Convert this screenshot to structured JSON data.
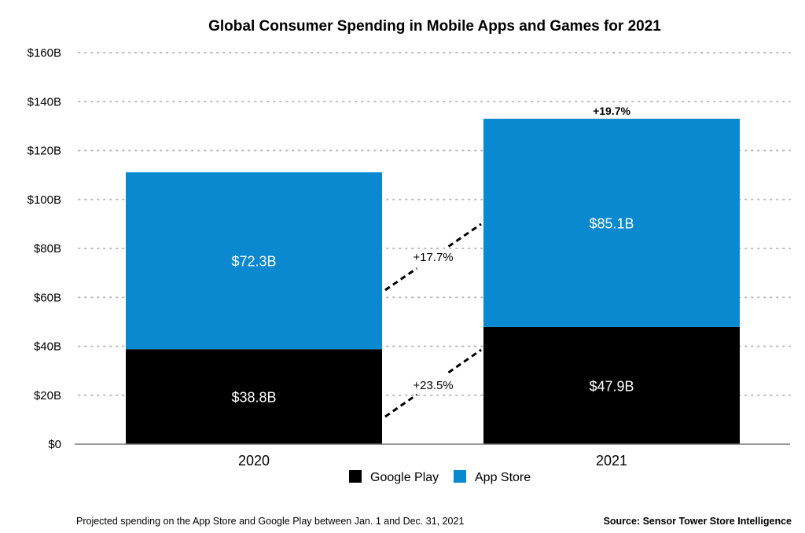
{
  "chart_data": {
    "type": "bar",
    "stacked": true,
    "title": "Global Consumer Spending in Mobile Apps and Games for 2021",
    "xlabel": "",
    "ylabel": "",
    "categories": [
      "2020",
      "2021"
    ],
    "series": [
      {
        "name": "Google Play",
        "values": [
          38.8,
          47.9
        ],
        "labels": [
          "$38.8B",
          "$47.9B"
        ],
        "color": "#000000"
      },
      {
        "name": "App Store",
        "values": [
          72.3,
          85.1
        ],
        "labels": [
          "$72.3B",
          "$85.1B"
        ],
        "color": "#0a88d0"
      }
    ],
    "ylim": [
      0,
      160
    ],
    "yticks": [
      0,
      20,
      40,
      60,
      80,
      100,
      120,
      140,
      160
    ],
    "ytick_labels": [
      "$0",
      "$20B",
      "$40B",
      "$60B",
      "$80B",
      "$100B",
      "$120B",
      "$140B",
      "$160B"
    ],
    "grid": "horizontal dotted",
    "legend": "bottom-center",
    "annotations": {
      "total_growth": "+19.7%",
      "app_store_growth": "+17.7%",
      "google_play_growth": "+23.5%"
    }
  },
  "footer": {
    "note": "Projected spending on the App Store and Google Play between Jan. 1 and Dec. 31, 2021",
    "source": "Source: Sensor Tower Store Intelligence"
  }
}
